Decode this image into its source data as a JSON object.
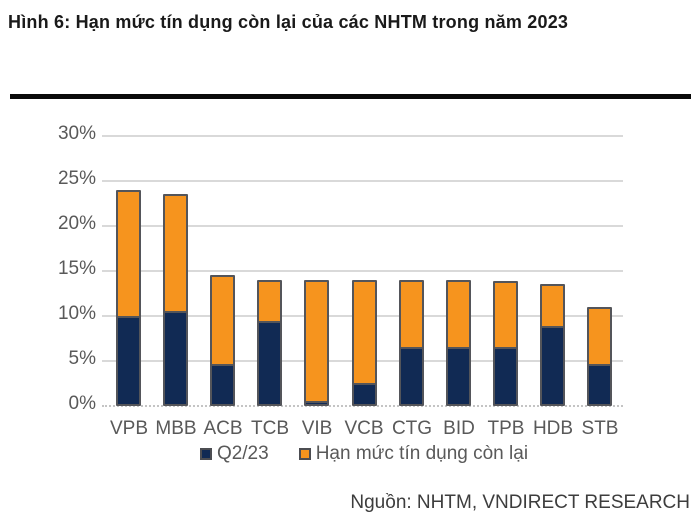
{
  "figure": {
    "title": "Hình 6: Hạn mức tín dụng còn lại của các NHTM trong năm 2023",
    "source": "Nguồn: NHTM, VNDIRECT RESEARCH"
  },
  "chart_data": {
    "type": "bar",
    "stacked": true,
    "title": "Hạn mức tín dụng còn lại của các NHTM trong năm 2023",
    "categories": [
      "VPB",
      "MBB",
      "ACB",
      "TCB",
      "VIB",
      "VCB",
      "CTG",
      "BID",
      "TPB",
      "HDB",
      "STB"
    ],
    "series": [
      {
        "name": "Q2/23",
        "color": "#112A54",
        "values": [
          10.0,
          10.5,
          4.7,
          9.4,
          0.6,
          2.5,
          6.5,
          6.5,
          6.6,
          8.9,
          4.7
        ]
      },
      {
        "name": "Hạn mức tín dụng còn lại",
        "color": "#F6941E",
        "values": [
          14.0,
          13.0,
          9.8,
          4.6,
          13.4,
          11.5,
          7.5,
          7.5,
          7.3,
          4.6,
          6.3
        ]
      }
    ],
    "stack_totals": [
      24.0,
      23.5,
      14.5,
      14.0,
      14.0,
      14.0,
      14.0,
      14.0,
      13.9,
      13.5,
      11.0
    ],
    "xlabel": "",
    "ylabel": "",
    "ylim": [
      0,
      30
    ],
    "ytick_step": 5,
    "ytick_labels": [
      "0%",
      "5%",
      "10%",
      "15%",
      "20%",
      "25%",
      "30%"
    ],
    "grid": true,
    "legend_position": "bottom",
    "colors": {
      "bar_border": "#54555A",
      "gridline": "#D9D9D9",
      "axis_text": "#595959",
      "q2_fill": "#112A54",
      "remaining_fill": "#F6941E"
    }
  }
}
